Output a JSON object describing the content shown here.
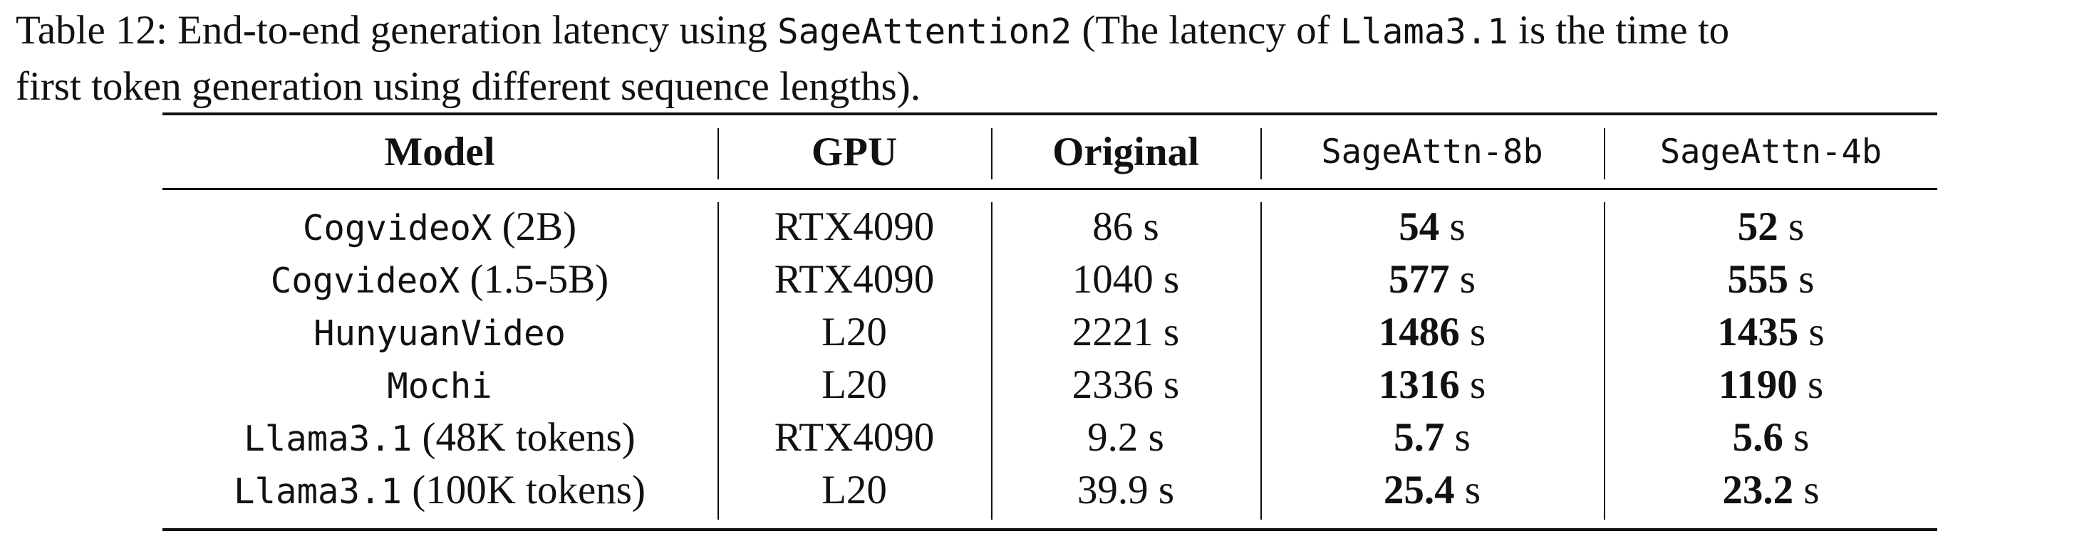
{
  "caption": {
    "line1_prefix": "Table 12: End-to-end generation latency using ",
    "line1_code1": "SageAttention2",
    "line1_middle": " (The latency of ",
    "line1_code2": "Llama3.1",
    "line1_suffix": " is the time to",
    "line2": "first token generation using different sequence lengths)."
  },
  "table": {
    "headers": [
      "Model",
      "GPU",
      "Original",
      "SageAttn-8b",
      "SageAttn-4b"
    ],
    "rows": [
      {
        "model_name": "CogvideoX",
        "model_detail": " (2B)",
        "gpu": "RTX4090",
        "original": "86 s",
        "sage8_value": "54",
        "sage8_unit": " s",
        "sage4_value": "52",
        "sage4_unit": " s"
      },
      {
        "model_name": "CogvideoX",
        "model_detail": " (1.5-5B)",
        "gpu": "RTX4090",
        "original": "1040 s",
        "sage8_value": "577",
        "sage8_unit": " s",
        "sage4_value": "555",
        "sage4_unit": " s"
      },
      {
        "model_name": "HunyuanVideo",
        "model_detail": "",
        "gpu": "L20",
        "original": "2221 s",
        "sage8_value": "1486",
        "sage8_unit": " s",
        "sage4_value": "1435",
        "sage4_unit": " s"
      },
      {
        "model_name": "Mochi",
        "model_detail": "",
        "gpu": "L20",
        "original": "2336 s",
        "sage8_value": "1316",
        "sage8_unit": " s",
        "sage4_value": "1190",
        "sage4_unit": " s"
      },
      {
        "model_name": "Llama3.1",
        "model_detail": " (48K tokens)",
        "gpu": "RTX4090",
        "original": "9.2 s",
        "sage8_value": "5.7",
        "sage8_unit": " s",
        "sage4_value": "5.6",
        "sage4_unit": " s"
      },
      {
        "model_name": "Llama3.1",
        "model_detail": " (100K tokens)",
        "gpu": "L20",
        "original": "39.9 s",
        "sage8_value": "25.4",
        "sage8_unit": " s",
        "sage4_value": "23.2",
        "sage4_unit": " s"
      }
    ]
  }
}
